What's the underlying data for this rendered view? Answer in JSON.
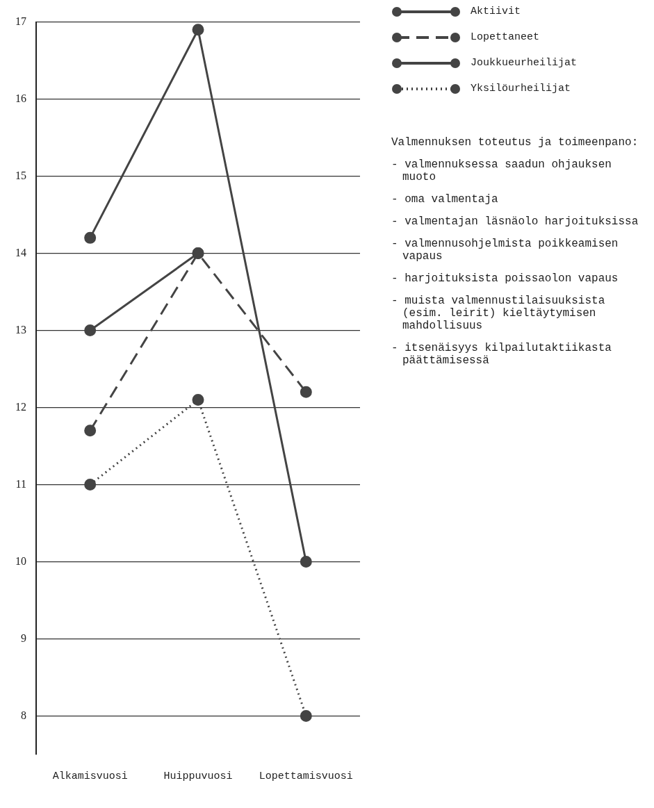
{
  "chart_data": {
    "type": "line",
    "categories": [
      "Alkamisvuosi",
      "Huippuvuosi",
      "Lopettamisvuosi"
    ],
    "series": [
      {
        "name": "Aktiivit",
        "color": "#444444",
        "values": [
          13,
          14,
          null
        ],
        "line_style": "solid"
      },
      {
        "name": "Lopettaneet",
        "color": "#444444",
        "values": [
          11.7,
          14,
          12.2
        ],
        "line_style": "dashed"
      },
      {
        "name": "Joukkueurheilijat",
        "color": "#444444",
        "values": [
          14.2,
          16.9,
          10
        ],
        "line_style": "solid"
      },
      {
        "name": "Yksilöurheilijat",
        "color": "#444444",
        "values": [
          11,
          12.1,
          8
        ],
        "line_style": "dotted"
      }
    ],
    "ylim": [
      7.5,
      17
    ],
    "yticks": [
      8,
      9,
      10,
      11,
      12,
      13,
      14,
      15,
      16,
      17
    ],
    "grid": "y",
    "legend": "top right",
    "marker": "circle",
    "annotations": [
      "Valmennuksen toteutus ja toimeenpano:",
      "- valmennuksessa saadun ohjauksen muoto",
      "- oma valmentaja",
      "- valmentajan läsnäolo harjoituksissa",
      "- valmennusohjelmista poikkeamisen vapaus",
      "- harjoituksista poissaolon vapaus",
      "- muista valmennustilaisuuksista (esim. leirit) kieltäytymisen mahdollisuus",
      "- itsenäisyys kilpailutaktiikasta päättämisessä"
    ]
  }
}
